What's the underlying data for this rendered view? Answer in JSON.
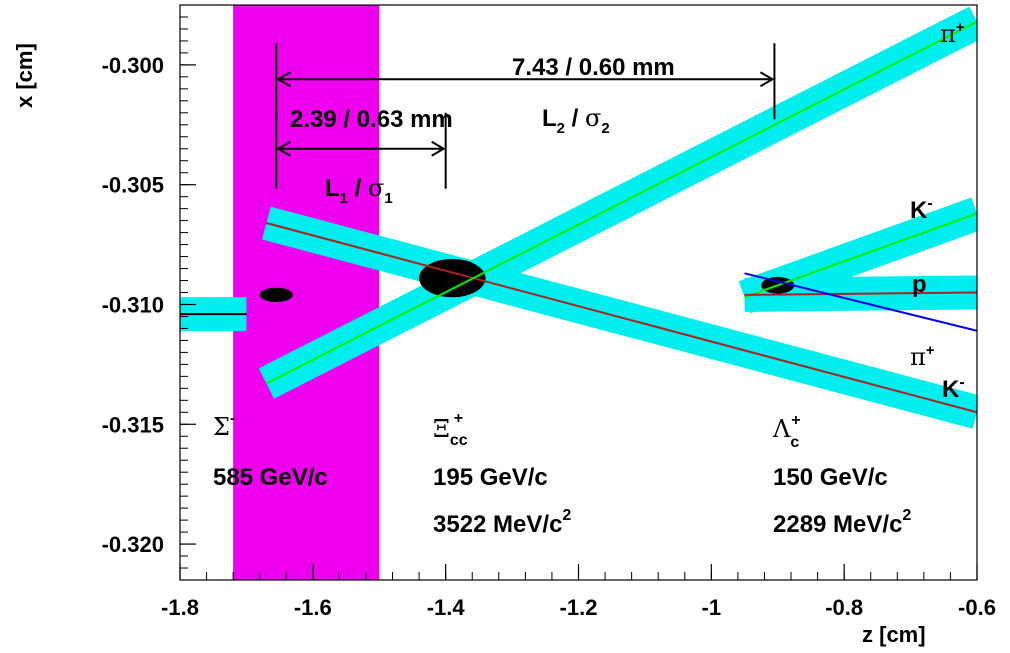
{
  "chart_data": {
    "type": "diagram",
    "xlabel": "z [cm]",
    "ylabel": "x [cm]",
    "xlim": [
      -1.8,
      -0.6
    ],
    "ylim": [
      -0.3215,
      -0.2975
    ],
    "x_ticks": [
      -1.8,
      -1.6,
      -1.4,
      -1.2,
      -1,
      -0.8,
      -0.6
    ],
    "x_tick_labels": [
      "-1.8",
      "-1.6",
      "-1.4",
      "-1.2",
      "-1",
      "-0.8",
      "-0.6"
    ],
    "y_ticks": [
      -0.3,
      -0.305,
      -0.31,
      -0.315,
      -0.32
    ],
    "y_tick_labels": [
      "-0.300",
      "-0.305",
      "-0.310",
      "-0.315",
      "-0.320"
    ],
    "target_region": {
      "z_from": -1.72,
      "z_to": -1.5,
      "color": "#ee00ee"
    },
    "band_color": "#00eeee",
    "tracks": [
      {
        "id": "sigma",
        "z1": -1.8,
        "x1": -0.3104,
        "z2": -1.7,
        "x2": -0.3104,
        "line_color": "#000000",
        "band": true
      },
      {
        "id": "xicc-daughter",
        "z1": -1.67,
        "x1": -0.3066,
        "z2": -0.6,
        "x2": -0.3145,
        "line_color": "#aa2222",
        "band": true
      },
      {
        "id": "pi-plus-1",
        "z1": -1.67,
        "x1": -0.3133,
        "z2": -0.6,
        "x2": -0.2982,
        "line_color": "#00ee00",
        "band": true
      },
      {
        "id": "k-minus-1",
        "z1": -0.95,
        "x1": -0.3097,
        "z2": -0.6,
        "x2": -0.3062,
        "line_color": "#00ee00",
        "band": true
      },
      {
        "id": "proton",
        "z1": -0.95,
        "x1": -0.3096,
        "z2": -0.6,
        "x2": -0.3095,
        "line_color": "#aa2222",
        "band": true
      },
      {
        "id": "pi-plus-2",
        "z1": -0.95,
        "x1": -0.3087,
        "z2": -0.6,
        "x2": -0.3111,
        "line_color": "#0000dd",
        "band": false
      }
    ],
    "vertices": [
      {
        "id": "sigma-vertex",
        "z": -1.655,
        "x": -0.3096,
        "rz": 0.025,
        "rx": 0.0003
      },
      {
        "id": "xicc-vertex",
        "z": -1.39,
        "x": -0.3089,
        "rz": 0.05,
        "rx": 0.0008
      },
      {
        "id": "lambdac-vertex",
        "z": -0.9,
        "x": -0.3092,
        "rz": 0.025,
        "rx": 0.00035
      }
    ],
    "decay_length_markers": [
      {
        "id": "L1",
        "z_from": -1.655,
        "z_to": -1.4,
        "x": -0.3035,
        "label": "L₁ / σ₁",
        "value": "2.39 / 0.63 mm"
      },
      {
        "id": "L2",
        "z_from": -1.655,
        "z_to": -0.905,
        "x": -0.3006,
        "label": "L₂ / σ₂",
        "value": "7.43 / 0.60 mm"
      }
    ]
  },
  "annotations": {
    "l2_value": "7.43 / 0.60 mm",
    "l1_value": "2.39 / 0.63 mm",
    "l2_label": {
      "main": "L",
      "sub": "2",
      "mid": " / ",
      "greek": "σ",
      "greek_sub": "2"
    },
    "l1_label": {
      "main": "L",
      "sub": "1",
      "mid": " / ",
      "greek": "σ",
      "greek_sub": "1"
    }
  },
  "particles": {
    "pi_plus_top": {
      "sym": "π",
      "sup": "+"
    },
    "k_minus_top": {
      "sym": "K",
      "sup": "-"
    },
    "proton": {
      "sym": "p"
    },
    "pi_plus_bottom": {
      "sym": "π",
      "sup": "+"
    },
    "k_minus_bottom": {
      "sym": "K",
      "sup": "-"
    },
    "sigma": {
      "sym": "Σ",
      "sup": "-",
      "momentum": "585 GeV/c"
    },
    "xicc": {
      "sym": "Ξ",
      "sub": "cc",
      "sup": "+",
      "momentum": "195 GeV/c",
      "mass": "3522 MeV/c",
      "mass_sup": "2"
    },
    "lambdac": {
      "sym": "Λ",
      "sub": "c",
      "sup": "+",
      "momentum": "150 GeV/c",
      "mass": "2289 MeV/c",
      "mass_sup": "2"
    }
  }
}
